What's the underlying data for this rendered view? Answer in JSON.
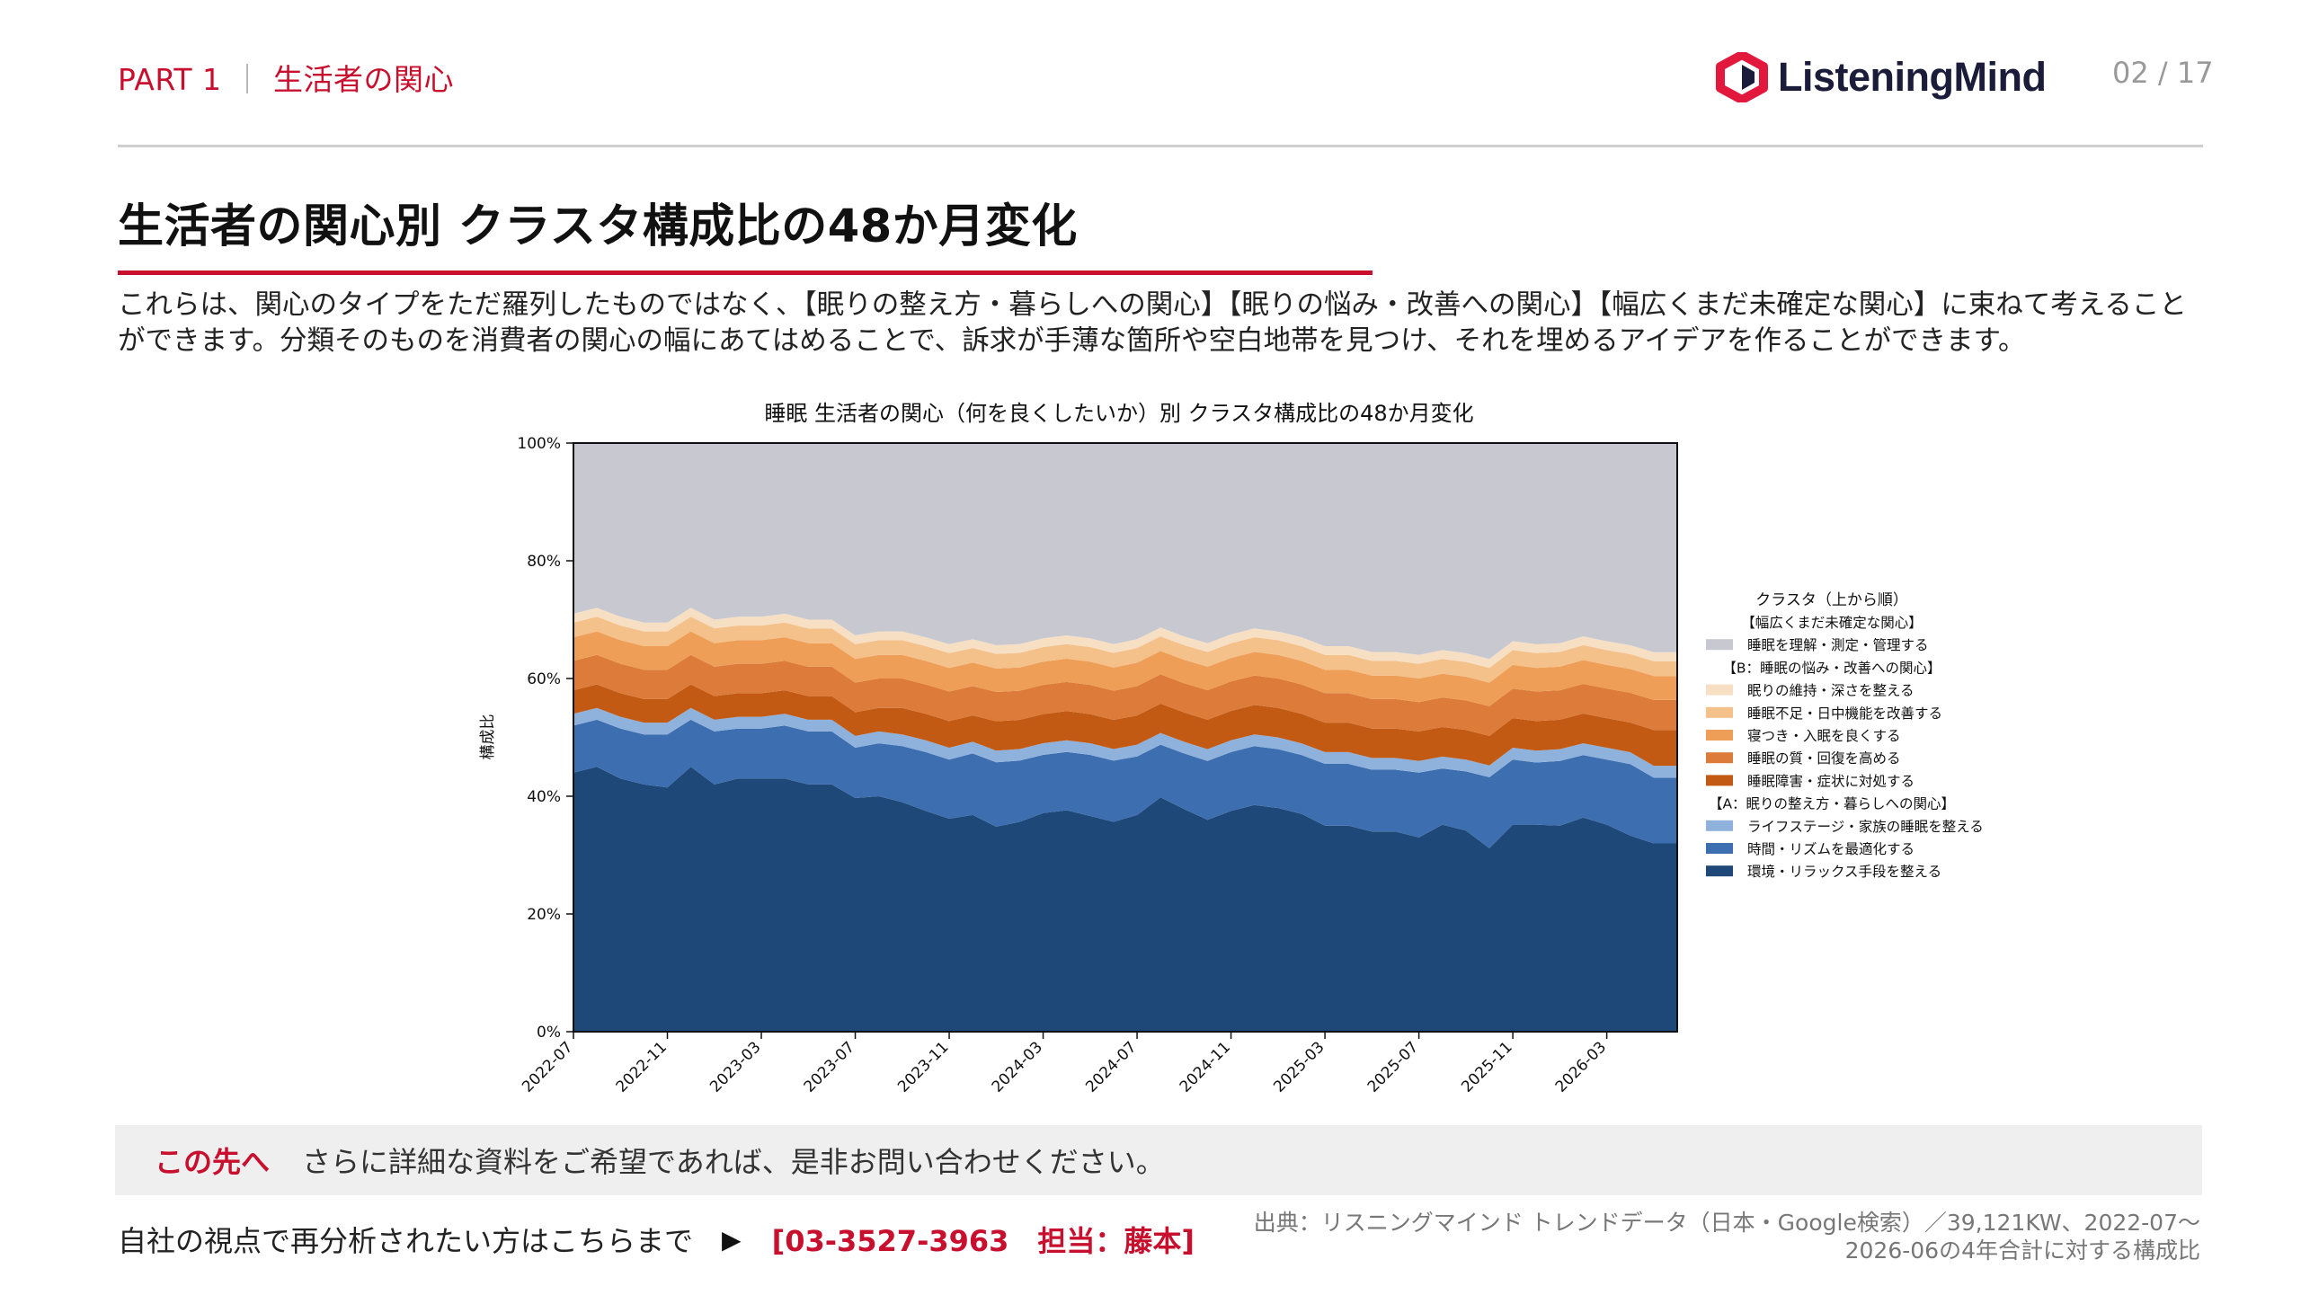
{
  "header": {
    "part_label": "PART 1",
    "part_separator": "｜",
    "part_title": "生活者の関心",
    "brand": "ListeningMind",
    "page_indicator": "02 / 17"
  },
  "main": {
    "title": "生活者の関心別 クラスタ構成比の48か月変化",
    "lead": "これらは、関心のタイプをただ羅列したものではなく、【眠りの整え方・暮らしへの関心】【眠りの悩み・改善への関心】【幅広くまだ未確定な関心】に束ねて考えることができます。分類そのものを消費者の関心の幅にあてはめることで、訴求が手薄な箇所や空白地帯を見つけ、それを埋めるアイデアを作ることができます。"
  },
  "chart_data": {
    "type": "area",
    "stacked": true,
    "normalized": true,
    "title": "睡眠 生活者の関心（何を良くしたいか）別 クラスタ構成比の48か月変化",
    "xlabel": "",
    "ylabel": "構成比",
    "ylim": [
      0,
      100
    ],
    "yticks": [
      "0%",
      "20%",
      "40%",
      "60%",
      "80%",
      "100%"
    ],
    "x": [
      "2022-07",
      "2022-08",
      "2022-09",
      "2022-10",
      "2022-11",
      "2022-12",
      "2023-01",
      "2023-02",
      "2023-03",
      "2023-04",
      "2023-05",
      "2023-06",
      "2023-07",
      "2023-08",
      "2023-09",
      "2023-10",
      "2023-11",
      "2023-12",
      "2024-01",
      "2024-02",
      "2024-03",
      "2024-04",
      "2024-05",
      "2024-06",
      "2024-07",
      "2024-08",
      "2024-09",
      "2024-10",
      "2024-11",
      "2024-12",
      "2025-01",
      "2025-02",
      "2025-03",
      "2025-04",
      "2025-05",
      "2025-06",
      "2025-07",
      "2025-08",
      "2025-09",
      "2025-10",
      "2025-11",
      "2025-12",
      "2026-01",
      "2026-02",
      "2026-03",
      "2026-04",
      "2026-05",
      "2026-06"
    ],
    "xtick_labels": [
      "2022-07",
      "2022-11",
      "2023-03",
      "2023-07",
      "2023-11",
      "2024-03",
      "2024-07",
      "2024-11",
      "2025-03",
      "2025-07",
      "2025-11",
      "2026-03"
    ],
    "legend_title": "クラスタ（上から順）",
    "legend_position": "right",
    "legend": [
      {
        "type": "group",
        "label": "【幅広くまだ未確定な関心】"
      },
      {
        "type": "item",
        "label": "睡眠を理解・測定・管理する",
        "color": "#c7c8d0"
      },
      {
        "type": "group",
        "label": "【B：睡眠の悩み・改善への関心】"
      },
      {
        "type": "item",
        "label": "眠りの維持・深さを整える",
        "color": "#f7dfc4"
      },
      {
        "type": "item",
        "label": "睡眠不足・日中機能を改善する",
        "color": "#f3c189"
      },
      {
        "type": "item",
        "label": "寝つき・入眠を良くする",
        "color": "#ee9e57"
      },
      {
        "type": "item",
        "label": "睡眠の質・回復を高める",
        "color": "#dc7b3a"
      },
      {
        "type": "item",
        "label": "睡眠障害・症状に対処する",
        "color": "#c25a13"
      },
      {
        "type": "group",
        "label": "【A：眠りの整え方・暮らしへの関心】"
      },
      {
        "type": "item",
        "label": "ライフステージ・家族の睡眠を整える",
        "color": "#8fb2dd"
      },
      {
        "type": "item",
        "label": "時間・リズムを最適化する",
        "color": "#3c6eb0"
      },
      {
        "type": "item",
        "label": "環境・リラックス手段を整える",
        "color": "#1e4877"
      }
    ],
    "series": [
      {
        "name": "環境・リラックス手段を整える",
        "color": "#1e4877",
        "values": [
          44,
          45,
          43,
          42,
          41.5,
          45,
          42,
          43,
          43,
          43,
          42,
          42,
          39.5,
          40,
          39,
          37.5,
          36,
          37,
          35,
          36,
          37.5,
          38,
          37,
          36,
          37,
          40,
          38,
          36,
          37.5,
          38.5,
          38,
          37,
          35,
          35,
          34,
          34,
          33,
          35,
          34,
          31,
          35,
          35,
          35,
          36,
          35,
          33,
          31.5,
          31.5
        ]
      },
      {
        "name": "時間・リズムを最適化する",
        "color": "#3c6eb0",
        "values": [
          8,
          8,
          8.5,
          8.5,
          9,
          8,
          9,
          8.5,
          8.5,
          9,
          9,
          9,
          8.5,
          9,
          9.5,
          10,
          10,
          10.5,
          11,
          10.5,
          10,
          10,
          10.5,
          10.5,
          10,
          9,
          9.5,
          10,
          10,
          10,
          10,
          10,
          10.5,
          10.5,
          10.5,
          10.5,
          11,
          9.5,
          10,
          12,
          11,
          10.5,
          11,
          10.5,
          11,
          12,
          11,
          11
        ]
      },
      {
        "name": "ライフステージ・家族の睡眠を整える",
        "color": "#8fb2dd",
        "values": [
          2,
          2,
          2,
          2,
          2,
          2,
          2,
          2,
          2,
          2,
          2,
          2,
          2,
          2,
          2,
          2,
          2,
          2,
          2,
          2,
          2,
          2,
          2,
          2,
          2,
          2,
          2,
          2,
          2,
          2,
          2,
          2,
          2,
          2,
          2,
          2,
          2,
          2,
          2,
          2,
          2,
          2,
          2,
          2,
          2,
          2,
          2,
          2
        ]
      },
      {
        "name": "睡眠障害・症状に対処する",
        "color": "#c25a13",
        "values": [
          4,
          4,
          4,
          4,
          4,
          4,
          4,
          4,
          4,
          4,
          4,
          4,
          4,
          4,
          4.5,
          4.5,
          4.5,
          4.5,
          5,
          5,
          5,
          5,
          5,
          5,
          5,
          5,
          5,
          5,
          5,
          5,
          5,
          5,
          5,
          5,
          5,
          5,
          5,
          5,
          5,
          5,
          5,
          5,
          5,
          5,
          5,
          5,
          6,
          6
        ]
      },
      {
        "name": "睡眠の質・回復を高める",
        "color": "#dc7b3a",
        "values": [
          5,
          5,
          5,
          5,
          5,
          5,
          5,
          5,
          5,
          5,
          5,
          5,
          5,
          5,
          5,
          5,
          5,
          5,
          5,
          5,
          5,
          5,
          5,
          5,
          5,
          5,
          5,
          5,
          5,
          5,
          5,
          5,
          5,
          5,
          5,
          5,
          5,
          5,
          5,
          5,
          5,
          5,
          5,
          5,
          5,
          5,
          5,
          5
        ]
      },
      {
        "name": "寝つき・入眠を良くする",
        "color": "#ee9e57",
        "values": [
          4,
          4,
          4,
          4,
          4,
          4,
          4,
          4,
          4,
          4,
          4,
          4,
          4,
          4,
          4,
          4,
          4,
          4,
          4,
          4,
          4,
          4,
          4,
          4,
          4,
          4,
          4,
          4,
          4,
          4,
          4,
          4,
          4,
          4,
          4,
          4,
          4,
          4,
          4,
          4,
          4,
          4,
          4,
          4,
          4,
          4,
          4,
          4
        ]
      },
      {
        "name": "睡眠不足・日中機能を改善する",
        "color": "#f3c189",
        "values": [
          2.5,
          2.5,
          2.5,
          2.5,
          2.5,
          2.5,
          2.5,
          2.5,
          2.5,
          2.5,
          2.5,
          2.5,
          2.5,
          2.5,
          2.5,
          2.5,
          2.5,
          2.5,
          2.5,
          2.5,
          2.5,
          2.5,
          2.5,
          2.5,
          2.5,
          2.5,
          2.5,
          2.5,
          2.5,
          2.5,
          2.5,
          2.5,
          2.5,
          2.5,
          2.5,
          2.5,
          2.5,
          2.5,
          2.5,
          2.5,
          2.5,
          2.5,
          2.5,
          2.5,
          2.5,
          2.5,
          2.5,
          2.5
        ]
      },
      {
        "name": "眠りの維持・深さを整える",
        "color": "#f7dfc4",
        "values": [
          1.5,
          1.5,
          1.5,
          1.5,
          1.5,
          1.5,
          1.5,
          1.5,
          1.5,
          1.5,
          1.5,
          1.5,
          1.5,
          1.5,
          1.5,
          1.5,
          1.5,
          1.5,
          1.5,
          1.5,
          1.5,
          1.5,
          1.5,
          1.5,
          1.5,
          1.5,
          1.5,
          1.5,
          1.5,
          1.5,
          1.5,
          1.5,
          1.5,
          1.5,
          1.5,
          1.5,
          1.5,
          1.5,
          1.5,
          1.5,
          1.5,
          1.5,
          1.5,
          1.5,
          1.5,
          1.5,
          1.5,
          1.5
        ]
      },
      {
        "name": "睡眠を理解・測定・管理する",
        "color": "#c7c8d0",
        "values": [
          29,
          28,
          29.5,
          30.5,
          30.5,
          28,
          30,
          29.5,
          29.5,
          29,
          30,
          30,
          32.5,
          32,
          32,
          33,
          34,
          33.5,
          34.5,
          34.5,
          33.5,
          33,
          33.5,
          34.5,
          33.5,
          31.5,
          33,
          34,
          32.5,
          31.5,
          32,
          33,
          34.5,
          34.5,
          35.5,
          35.5,
          36,
          35,
          35.5,
          36.5,
          33.5,
          34,
          34,
          32.5,
          33.5,
          34,
          35,
          35
        ]
      }
    ]
  },
  "cta": {
    "label": "この先へ",
    "text": "さらに詳細な資料をご希望であれば、是非お問い合わせください。"
  },
  "contact": {
    "text": "自社の視点で再分析されたい方はこちらまで",
    "arrow": "▶",
    "tel": "[03-3527-3963　担当：藤本]"
  },
  "source": {
    "line1": "出典：リスニングマインド トレンドデータ（日本・Google検索）／39,121KW、2022-07〜",
    "line2": "2026-06の4年合計に対する構成比"
  },
  "colors": {
    "accent": "#c8102e",
    "logo_red": "#e2193d",
    "logo_dark": "#1b1b3a"
  }
}
